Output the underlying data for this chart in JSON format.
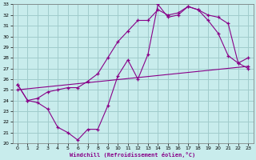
{
  "xlabel": "Windchill (Refroidissement éolien,°C)",
  "bg_color": "#c8ecec",
  "line_color": "#880088",
  "grid_color": "#a0cccc",
  "xlim": [
    -0.5,
    23.5
  ],
  "ylim": [
    20,
    33
  ],
  "xticks": [
    0,
    1,
    2,
    3,
    4,
    5,
    6,
    7,
    8,
    9,
    10,
    11,
    12,
    13,
    14,
    15,
    16,
    17,
    18,
    19,
    20,
    21,
    22,
    23
  ],
  "yticks": [
    20,
    21,
    22,
    23,
    24,
    25,
    26,
    27,
    28,
    29,
    30,
    31,
    32,
    33
  ],
  "line1_x": [
    0,
    1,
    2,
    3,
    4,
    5,
    6,
    7,
    8,
    9,
    10,
    11,
    12,
    13,
    14,
    15,
    16,
    17,
    18,
    19,
    20,
    21,
    22,
    23
  ],
  "line1_y": [
    25.5,
    24.0,
    23.8,
    23.2,
    21.5,
    21.0,
    20.3,
    21.3,
    21.3,
    23.5,
    26.3,
    27.8,
    26.0,
    28.3,
    33.0,
    31.8,
    32.0,
    32.8,
    32.5,
    31.5,
    30.3,
    28.2,
    27.5,
    28.0
  ],
  "line2_x": [
    0,
    1,
    2,
    3,
    4,
    5,
    6,
    7,
    8,
    9,
    10,
    11,
    12,
    13,
    14,
    15,
    16,
    17,
    18,
    19,
    20,
    21,
    22,
    23
  ],
  "line2_y": [
    25.5,
    24.0,
    24.2,
    24.8,
    25.0,
    25.2,
    25.2,
    25.8,
    26.5,
    28.0,
    29.5,
    30.5,
    31.5,
    31.5,
    32.5,
    32.0,
    32.2,
    32.8,
    32.5,
    32.0,
    31.8,
    31.2,
    27.5,
    27.0
  ],
  "line3_x": [
    0,
    23
  ],
  "line3_y": [
    25.0,
    27.2
  ]
}
